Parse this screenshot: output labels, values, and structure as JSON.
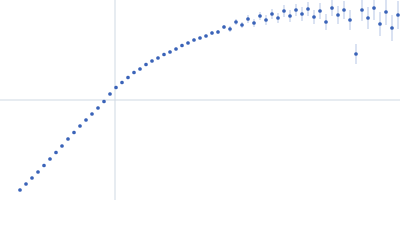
{
  "chart_data": {
    "type": "scatter",
    "xlim": [
      0,
      400
    ],
    "ylim": [
      0,
      200
    ],
    "grid_x": [
      115
    ],
    "grid_y": [
      100
    ],
    "color": "#3a63b8",
    "error_color": "#b4c4e6",
    "series": [
      {
        "x": [
          20,
          26,
          32,
          38,
          44,
          50,
          56,
          62,
          68,
          74,
          80,
          86,
          92,
          98,
          104,
          110,
          116,
          122,
          128,
          134,
          140,
          146,
          152,
          158,
          164,
          170,
          176,
          182,
          188,
          194,
          200,
          206,
          212,
          218,
          224,
          230,
          236,
          242,
          248,
          254,
          260,
          266,
          272,
          278,
          284,
          290,
          296,
          302,
          308,
          314,
          320,
          326,
          332,
          338,
          344,
          350,
          356,
          362,
          368,
          374,
          380,
          386,
          392,
          398
        ],
        "values": [
          10,
          16,
          22,
          28,
          34.5,
          41,
          47.5,
          54,
          61,
          67.5,
          74,
          80,
          86,
          92,
          98.5,
          106,
          112.5,
          117.5,
          122.5,
          127.5,
          131,
          135.5,
          139,
          142,
          145.5,
          148,
          151,
          154.5,
          157,
          160,
          162,
          164,
          167,
          168,
          173,
          171,
          178,
          175,
          181,
          177,
          184,
          180,
          186,
          182,
          189,
          184,
          190,
          186,
          191,
          183,
          189,
          178,
          192,
          185,
          190,
          180,
          146,
          190,
          182,
          192,
          176,
          188,
          172,
          185
        ],
        "errors": [
          0,
          0,
          0,
          0,
          0,
          0,
          0,
          0,
          0,
          0,
          0,
          0,
          0,
          0,
          0,
          0,
          0,
          0,
          0,
          0,
          0,
          0,
          0,
          0,
          0,
          0,
          0,
          0,
          1,
          1,
          1,
          1,
          2,
          2,
          2,
          3,
          3,
          3,
          4,
          4,
          4,
          5,
          5,
          5,
          6,
          6,
          6,
          7,
          7,
          7,
          8,
          8,
          8,
          9,
          9,
          10,
          10,
          11,
          11,
          12,
          12,
          13,
          13,
          14
        ]
      }
    ]
  }
}
